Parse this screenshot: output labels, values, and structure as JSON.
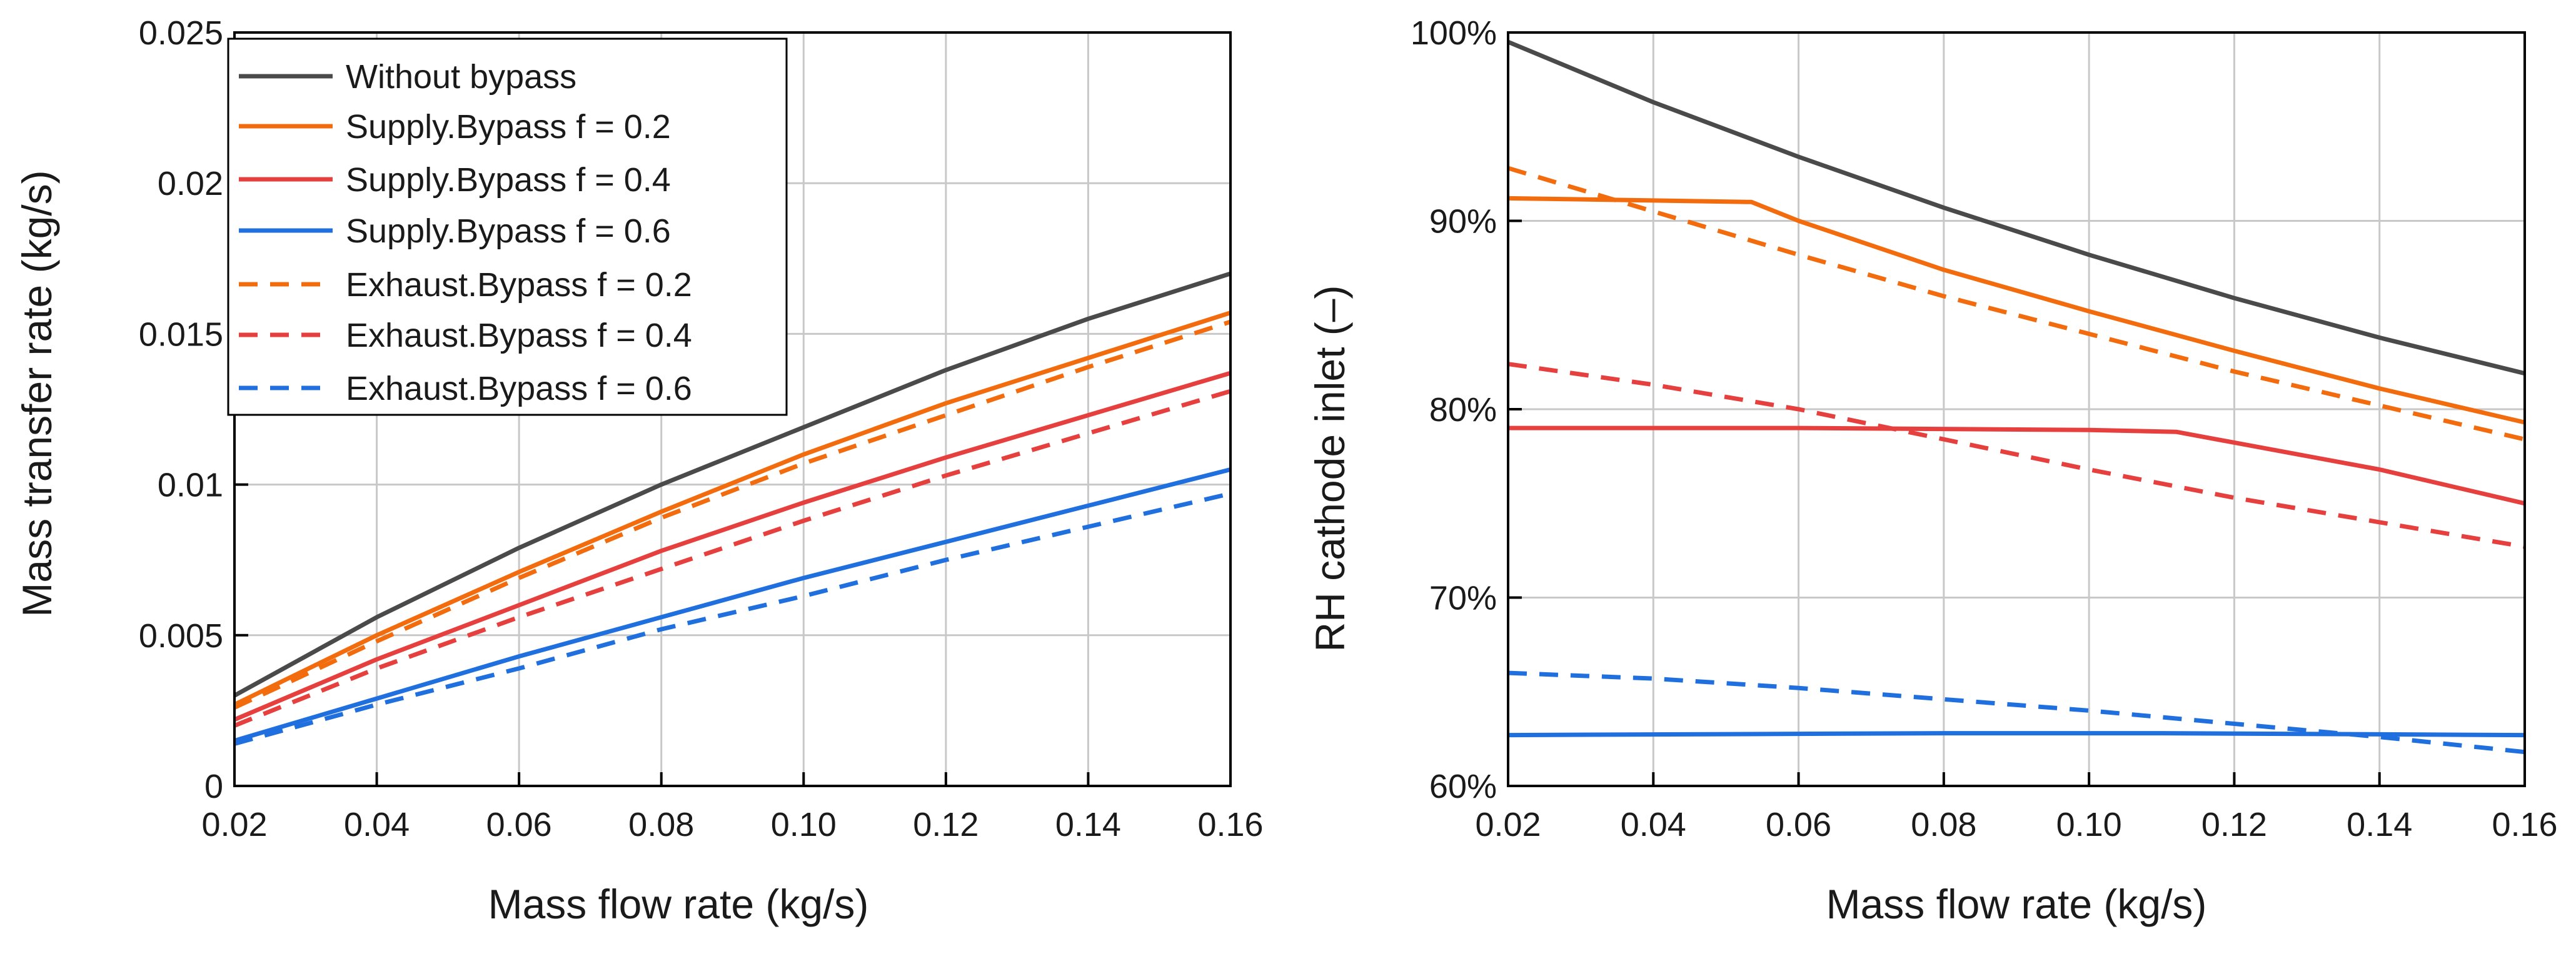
{
  "colors": {
    "without": "#4a4a4a",
    "f02": "#f26b0c",
    "f04": "#e6403e",
    "f06": "#1f6fde",
    "grid": "#c8c8c8",
    "axis": "#000000"
  },
  "chart_data": [
    {
      "type": "line",
      "title": "",
      "xlabel": "Mass flow rate (kg/s)",
      "ylabel": "Mass transfer rate (kg/s)",
      "xlim": [
        0.02,
        0.16
      ],
      "ylim": [
        0,
        0.025
      ],
      "xticks": [
        0.02,
        0.04,
        0.06,
        0.08,
        0.1,
        0.12,
        0.14,
        0.16
      ],
      "xtick_labels": [
        "0.02",
        "0.04",
        "0.06",
        "0.08",
        "0.10",
        "0.12",
        "0.14",
        "0.16"
      ],
      "yticks": [
        0,
        0.005,
        0.01,
        0.015,
        0.02,
        0.025
      ],
      "ytick_labels": [
        "0",
        "0.005",
        "0.01",
        "0.015",
        "0.02",
        "0.025"
      ],
      "grid": true,
      "legend_position": "top-left",
      "x": [
        0.02,
        0.04,
        0.06,
        0.08,
        0.1,
        0.12,
        0.14,
        0.16
      ],
      "series": [
        {
          "name": "Without bypass",
          "color_key": "without",
          "dash": "solid",
          "values": [
            0.003,
            0.0056,
            0.0079,
            0.01,
            0.0119,
            0.0138,
            0.0155,
            0.017
          ]
        },
        {
          "name": "Supply.Bypass f = 0.2",
          "color_key": "f02",
          "dash": "solid",
          "values": [
            0.0027,
            0.005,
            0.0071,
            0.0091,
            0.011,
            0.0127,
            0.0142,
            0.0157
          ]
        },
        {
          "name": "Supply.Bypass f = 0.4",
          "color_key": "f04",
          "dash": "solid",
          "values": [
            0.0022,
            0.0042,
            0.006,
            0.0078,
            0.0094,
            0.0109,
            0.0123,
            0.0137
          ]
        },
        {
          "name": "Supply.Bypass f = 0.6",
          "color_key": "f06",
          "dash": "solid",
          "values": [
            0.0015,
            0.0029,
            0.0043,
            0.0056,
            0.0069,
            0.0081,
            0.0093,
            0.0105
          ]
        },
        {
          "name": "Exhaust.Bypass f = 0.2",
          "color_key": "f02",
          "dash": "dashed",
          "values": [
            0.0026,
            0.0048,
            0.0069,
            0.0089,
            0.0107,
            0.0123,
            0.0139,
            0.0154
          ]
        },
        {
          "name": "Exhaust.Bypass f = 0.4",
          "color_key": "f04",
          "dash": "dashed",
          "values": [
            0.002,
            0.0039,
            0.0056,
            0.0072,
            0.0088,
            0.0103,
            0.0117,
            0.0131
          ]
        },
        {
          "name": "Exhaust.Bypass f = 0.6",
          "color_key": "f06",
          "dash": "dashed",
          "values": [
            0.0014,
            0.0027,
            0.0039,
            0.0052,
            0.0063,
            0.0075,
            0.0086,
            0.0097
          ]
        }
      ]
    },
    {
      "type": "line",
      "title": "",
      "xlabel": "Mass flow rate (kg/s)",
      "ylabel": "RH cathode inlet (–)",
      "xlim": [
        0.02,
        0.16
      ],
      "ylim": [
        0.6,
        1.0
      ],
      "xticks": [
        0.02,
        0.04,
        0.06,
        0.08,
        0.1,
        0.12,
        0.14,
        0.16
      ],
      "xtick_labels": [
        "0.02",
        "0.04",
        "0.06",
        "0.08",
        "0.10",
        "0.12",
        "0.14",
        "0.16"
      ],
      "yticks": [
        0.6,
        0.7,
        0.8,
        0.9,
        1.0
      ],
      "ytick_labels": [
        "60%",
        "70%",
        "80%",
        "90%",
        "100%"
      ],
      "grid": true,
      "series": [
        {
          "name": "Without bypass",
          "color_key": "without",
          "dash": "solid",
          "x": [
            0.02,
            0.04,
            0.06,
            0.08,
            0.1,
            0.12,
            0.14,
            0.16
          ],
          "values": [
            0.995,
            0.963,
            0.934,
            0.907,
            0.882,
            0.859,
            0.838,
            0.819
          ]
        },
        {
          "name": "Supply.Bypass f = 0.2",
          "color_key": "f02",
          "dash": "solid",
          "x": [
            0.02,
            0.0535,
            0.06,
            0.08,
            0.1,
            0.12,
            0.14,
            0.16
          ],
          "values": [
            0.912,
            0.91,
            0.9,
            0.874,
            0.852,
            0.831,
            0.811,
            0.793
          ]
        },
        {
          "name": "Supply.Bypass f = 0.4",
          "color_key": "f04",
          "dash": "solid",
          "x": [
            0.02,
            0.06,
            0.1,
            0.112,
            0.14,
            0.16
          ],
          "values": [
            0.79,
            0.79,
            0.789,
            0.788,
            0.768,
            0.75
          ]
        },
        {
          "name": "Supply.Bypass f = 0.6",
          "color_key": "f06",
          "dash": "solid",
          "x": [
            0.02,
            0.08,
            0.11,
            0.16
          ],
          "values": [
            0.627,
            0.628,
            0.628,
            0.627
          ]
        },
        {
          "name": "Exhaust.Bypass f = 0.2",
          "color_key": "f02",
          "dash": "dashed",
          "x": [
            0.02,
            0.04,
            0.06,
            0.08,
            0.1,
            0.12,
            0.14,
            0.16
          ],
          "values": [
            0.928,
            0.905,
            0.882,
            0.86,
            0.84,
            0.82,
            0.802,
            0.784
          ]
        },
        {
          "name": "Exhaust.Bypass f = 0.4",
          "color_key": "f04",
          "dash": "dashed",
          "x": [
            0.02,
            0.04,
            0.06,
            0.08,
            0.1,
            0.12,
            0.14,
            0.16
          ],
          "values": [
            0.824,
            0.813,
            0.8,
            0.784,
            0.768,
            0.753,
            0.74,
            0.727
          ]
        },
        {
          "name": "Exhaust.Bypass f = 0.6",
          "color_key": "f06",
          "dash": "dashed",
          "x": [
            0.02,
            0.04,
            0.06,
            0.08,
            0.1,
            0.12,
            0.14,
            0.16
          ],
          "values": [
            0.66,
            0.657,
            0.652,
            0.646,
            0.64,
            0.633,
            0.626,
            0.618
          ]
        }
      ]
    }
  ]
}
